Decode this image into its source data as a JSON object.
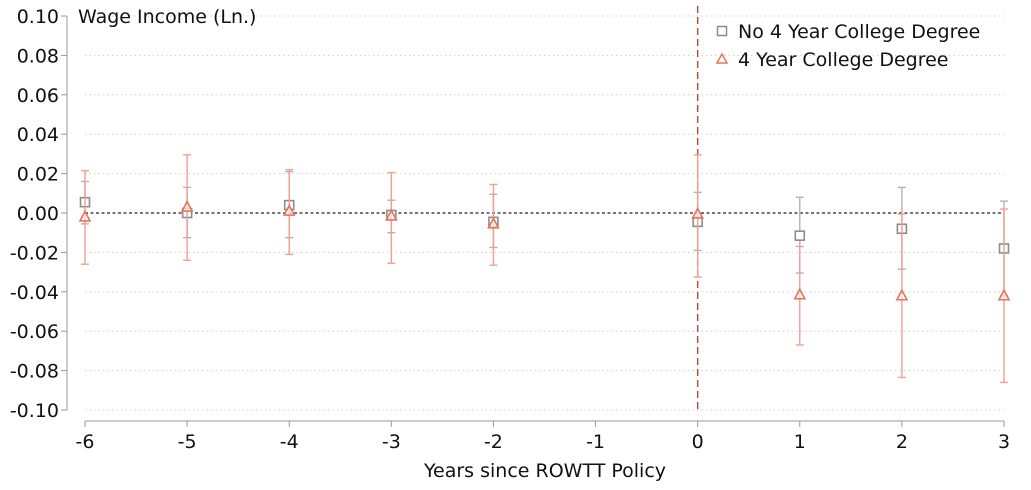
{
  "chart_data": {
    "type": "scatter",
    "subtype": "event-study coefficient plot with 95% confidence intervals",
    "ylabel": "Wage Income (Ln.)",
    "xlabel": "Years since ROWTT Policy",
    "x_ticks": [
      -6,
      -5,
      -4,
      -3,
      -2,
      -1,
      0,
      1,
      2,
      3
    ],
    "y_ticks": [
      -0.1,
      -0.08,
      -0.06,
      -0.04,
      -0.02,
      0.0,
      0.02,
      0.04,
      0.06,
      0.08,
      0.1
    ],
    "y_tick_labels": [
      "-0.10",
      "-0.08",
      "-0.06",
      "-0.04",
      "-0.02",
      "0.00",
      "0.02",
      "0.04",
      "0.06",
      "0.08",
      "0.10"
    ],
    "xlim": [
      -6,
      3
    ],
    "ylim": [
      -0.1,
      0.1
    ],
    "grid": "horizontal dotted",
    "reference_lines": {
      "horizontal_y": 0,
      "vertical_x": 0
    },
    "legend_position": "top-right",
    "series": [
      {
        "name": "No 4 Year College Degree",
        "marker": "square",
        "color": "#8c8c8c",
        "points": [
          {
            "x": -6,
            "y": 0.0055,
            "ci_low": -0.0055,
            "ci_high": 0.016
          },
          {
            "x": -5,
            "y": 0.0,
            "ci_low": -0.0125,
            "ci_high": 0.013
          },
          {
            "x": -4,
            "y": 0.004,
            "ci_low": -0.0125,
            "ci_high": 0.021
          },
          {
            "x": -3,
            "y": -0.001,
            "ci_low": -0.01,
            "ci_high": 0.0065
          },
          {
            "x": -2,
            "y": -0.0045,
            "ci_low": -0.0175,
            "ci_high": 0.0095
          },
          {
            "x": 0,
            "y": -0.0045,
            "ci_low": -0.019,
            "ci_high": 0.0105
          },
          {
            "x": 1,
            "y": -0.0115,
            "ci_low": -0.0305,
            "ci_high": 0.008
          },
          {
            "x": 2,
            "y": -0.008,
            "ci_low": -0.0285,
            "ci_high": 0.013
          },
          {
            "x": 3,
            "y": -0.018,
            "ci_low": -0.042,
            "ci_high": 0.006
          }
        ]
      },
      {
        "name": "4 Year College Degree",
        "marker": "triangle",
        "color": "#e8735a",
        "points": [
          {
            "x": -6,
            "y": -0.002,
            "ci_low": -0.026,
            "ci_high": 0.0215
          },
          {
            "x": -5,
            "y": 0.003,
            "ci_low": -0.024,
            "ci_high": 0.0295
          },
          {
            "x": -4,
            "y": 0.001,
            "ci_low": -0.021,
            "ci_high": 0.022
          },
          {
            "x": -3,
            "y": -0.0015,
            "ci_low": -0.0255,
            "ci_high": 0.0205
          },
          {
            "x": -2,
            "y": -0.0055,
            "ci_low": -0.0265,
            "ci_high": 0.0145
          },
          {
            "x": 0,
            "y": -0.0005,
            "ci_low": -0.0325,
            "ci_high": 0.0295
          },
          {
            "x": 1,
            "y": -0.0415,
            "ci_low": -0.067,
            "ci_high": -0.017
          },
          {
            "x": 2,
            "y": -0.042,
            "ci_low": -0.0835,
            "ci_high": -0.0005
          },
          {
            "x": 3,
            "y": -0.042,
            "ci_low": -0.086,
            "ci_high": 0.002
          }
        ]
      }
    ]
  }
}
